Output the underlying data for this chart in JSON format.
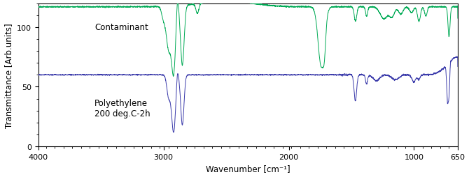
{
  "title": "",
  "xlabel": "Wavenumber [cm⁻¹]",
  "ylabel": "Transmittance [Arb.units]",
  "xlim": [
    4000,
    650
  ],
  "ylim": [
    0,
    120
  ],
  "yticks": [
    0,
    50,
    100
  ],
  "xticks": [
    4000,
    3000,
    2000,
    1000,
    650
  ],
  "label_contaminant": "Contaminant",
  "label_pe": "Polyethylene\n200 deg.C-2h",
  "color_contaminant": "#00aa55",
  "color_pe": "#3a3aaa",
  "background": "#ffffff",
  "figsize": [
    6.7,
    2.55
  ],
  "dpi": 100
}
